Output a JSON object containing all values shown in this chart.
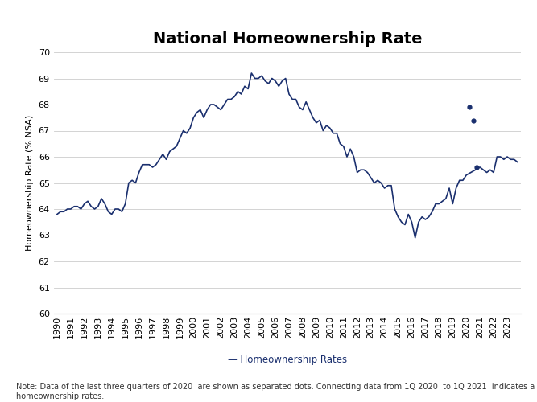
{
  "title": "National Homeownership Rate",
  "ylabel": "Homeownership Rate (% NSA)",
  "legend_label": "— Homeownership Rates",
  "note": "Note: Data of the last three quarters of 2020  are shown as separated dots. Connecting data from 1Q 2020  to 1Q 2021  indicates a plausible path of\nhomeownership rates.",
  "line_color": "#1a2f6e",
  "dot_color": "#1a2f6e",
  "background_color": "#ffffff",
  "ylim": [
    60,
    70
  ],
  "yticks": [
    60,
    61,
    62,
    63,
    64,
    65,
    66,
    67,
    68,
    69,
    70
  ],
  "title_fontsize": 14,
  "label_fontsize": 8,
  "tick_fontsize": 8,
  "note_fontsize": 7,
  "data": {
    "1990.0": 63.8,
    "1990.25": 63.9,
    "1990.5": 63.9,
    "1990.75": 64.0,
    "1991.0": 64.0,
    "1991.25": 64.1,
    "1991.5": 64.1,
    "1991.75": 64.0,
    "1992.0": 64.2,
    "1992.25": 64.3,
    "1992.5": 64.1,
    "1992.75": 64.0,
    "1993.0": 64.1,
    "1993.25": 64.4,
    "1993.5": 64.2,
    "1993.75": 63.9,
    "1994.0": 63.8,
    "1994.25": 64.0,
    "1994.5": 64.0,
    "1994.75": 63.9,
    "1995.0": 64.2,
    "1995.25": 65.0,
    "1995.5": 65.1,
    "1995.75": 65.0,
    "1996.0": 65.4,
    "1996.25": 65.7,
    "1996.5": 65.7,
    "1996.75": 65.7,
    "1997.0": 65.6,
    "1997.25": 65.7,
    "1997.5": 65.9,
    "1997.75": 66.1,
    "1998.0": 65.9,
    "1998.25": 66.2,
    "1998.5": 66.3,
    "1998.75": 66.4,
    "1999.0": 66.7,
    "1999.25": 67.0,
    "1999.5": 66.9,
    "1999.75": 67.1,
    "2000.0": 67.5,
    "2000.25": 67.7,
    "2000.5": 67.8,
    "2000.75": 67.5,
    "2001.0": 67.8,
    "2001.25": 68.0,
    "2001.5": 68.0,
    "2001.75": 67.9,
    "2002.0": 67.8,
    "2002.25": 68.0,
    "2002.5": 68.2,
    "2002.75": 68.2,
    "2003.0": 68.3,
    "2003.25": 68.5,
    "2003.5": 68.4,
    "2003.75": 68.7,
    "2004.0": 68.6,
    "2004.25": 69.2,
    "2004.5": 69.0,
    "2004.75": 69.0,
    "2005.0": 69.1,
    "2005.25": 68.9,
    "2005.5": 68.8,
    "2005.75": 69.0,
    "2006.0": 68.9,
    "2006.25": 68.7,
    "2006.5": 68.9,
    "2006.75": 69.0,
    "2007.0": 68.4,
    "2007.25": 68.2,
    "2007.5": 68.2,
    "2007.75": 67.9,
    "2008.0": 67.8,
    "2008.25": 68.1,
    "2008.5": 67.8,
    "2008.75": 67.5,
    "2009.0": 67.3,
    "2009.25": 67.4,
    "2009.5": 67.0,
    "2009.75": 67.2,
    "2010.0": 67.1,
    "2010.25": 66.9,
    "2010.5": 66.9,
    "2010.75": 66.5,
    "2011.0": 66.4,
    "2011.25": 66.0,
    "2011.5": 66.3,
    "2011.75": 66.0,
    "2012.0": 65.4,
    "2012.25": 65.5,
    "2012.5": 65.5,
    "2012.75": 65.4,
    "2013.0": 65.2,
    "2013.25": 65.0,
    "2013.5": 65.1,
    "2013.75": 65.0,
    "2014.0": 64.8,
    "2014.25": 64.9,
    "2014.5": 64.9,
    "2014.75": 64.0,
    "2015.0": 63.7,
    "2015.25": 63.5,
    "2015.5": 63.4,
    "2015.75": 63.8,
    "2016.0": 63.5,
    "2016.25": 62.9,
    "2016.5": 63.5,
    "2016.75": 63.7,
    "2017.0": 63.6,
    "2017.25": 63.7,
    "2017.5": 63.9,
    "2017.75": 64.2,
    "2018.0": 64.2,
    "2018.25": 64.3,
    "2018.5": 64.4,
    "2018.75": 64.8,
    "2019.0": 64.2,
    "2019.25": 64.8,
    "2019.5": 65.1,
    "2019.75": 65.1,
    "2020.0": 65.3,
    "2021.0": 65.6,
    "2021.25": 65.5,
    "2021.5": 65.4,
    "2021.75": 65.5,
    "2022.0": 65.4,
    "2022.25": 66.0,
    "2022.5": 66.0,
    "2022.75": 65.9,
    "2023.0": 66.0,
    "2023.25": 65.9,
    "2023.5": 65.9,
    "2023.75": 65.8
  },
  "separate_dots": {
    "2020.25": 67.9,
    "2020.5": 67.4,
    "2020.75": 65.6
  },
  "xtick_years": [
    1990,
    1991,
    1992,
    1993,
    1994,
    1995,
    1996,
    1997,
    1998,
    1999,
    2000,
    2001,
    2002,
    2003,
    2004,
    2005,
    2006,
    2007,
    2008,
    2009,
    2010,
    2011,
    2012,
    2013,
    2014,
    2015,
    2016,
    2017,
    2018,
    2019,
    2020,
    2021,
    2022,
    2023
  ]
}
